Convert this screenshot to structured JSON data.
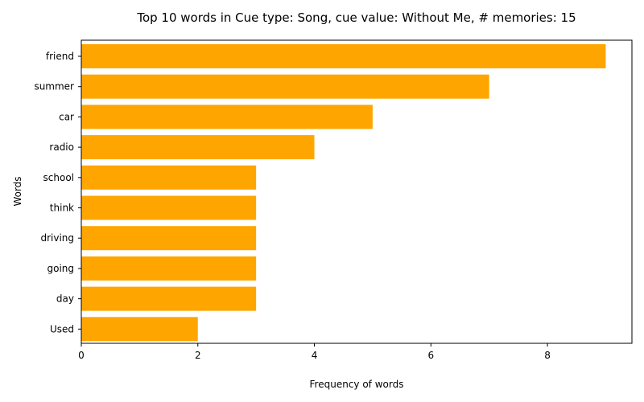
{
  "chart_data": {
    "type": "bar",
    "orientation": "horizontal",
    "title": "Top 10 words in Cue type: Song, cue value: Without Me, # memories: 15",
    "xlabel": "Frequency of words",
    "ylabel": "Words",
    "categories": [
      "friend",
      "summer",
      "car",
      "radio",
      "school",
      "think",
      "driving",
      "going",
      "day",
      "Used"
    ],
    "values": [
      9,
      7,
      5,
      4,
      3,
      3,
      3,
      3,
      3,
      2
    ],
    "xlim": [
      0,
      9.45
    ],
    "xticks": [
      0,
      2,
      4,
      6,
      8
    ],
    "bar_color": "#ffa500",
    "grid": false,
    "legend": "none"
  }
}
